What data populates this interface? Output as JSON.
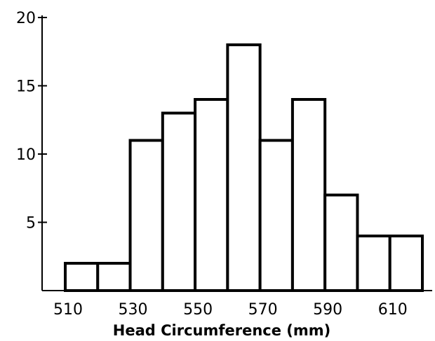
{
  "chart_data": {
    "type": "bar",
    "title": "",
    "xlabel": "Head Circumference  (mm)",
    "ylabel": "",
    "bins": [
      {
        "start": 510,
        "end": 520,
        "count": 2
      },
      {
        "start": 520,
        "end": 530,
        "count": 2
      },
      {
        "start": 530,
        "end": 540,
        "count": 11
      },
      {
        "start": 540,
        "end": 550,
        "count": 13
      },
      {
        "start": 550,
        "end": 560,
        "count": 14
      },
      {
        "start": 560,
        "end": 570,
        "count": 18
      },
      {
        "start": 570,
        "end": 580,
        "count": 11
      },
      {
        "start": 580,
        "end": 590,
        "count": 14
      },
      {
        "start": 590,
        "end": 600,
        "count": 7
      },
      {
        "start": 600,
        "end": 610,
        "count": 4
      },
      {
        "start": 610,
        "end": 620,
        "count": 4
      }
    ],
    "xlim": [
      510,
      620
    ],
    "ylim": [
      0,
      20
    ],
    "x_ticks": [
      "510",
      "530",
      "550",
      "570",
      "590",
      "610"
    ],
    "y_ticks": [
      "5",
      "10",
      "15",
      "20"
    ],
    "grid": false,
    "colors": {
      "bar_fill": "#ffffff",
      "bar_stroke": "#000000",
      "axis": "#000000"
    }
  }
}
